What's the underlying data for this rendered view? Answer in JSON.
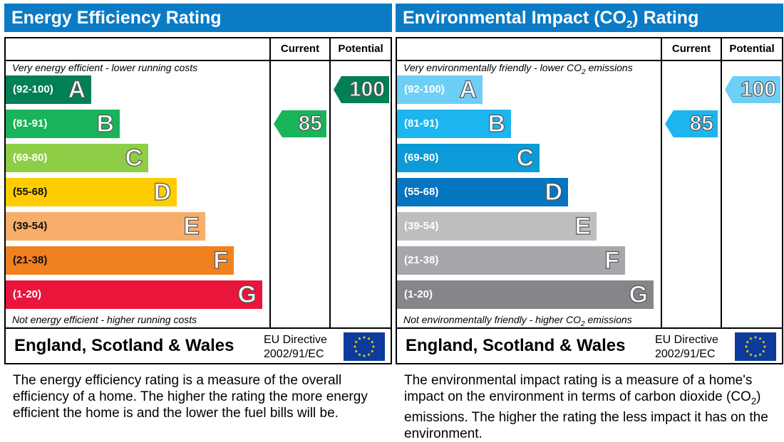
{
  "chart_data": [
    {
      "type": "bar",
      "title": "Energy Efficiency Rating",
      "column_headers": [
        "Current",
        "Potential"
      ],
      "top_note": "Very energy efficient - lower running costs",
      "bottom_note": "Not energy efficient - higher running costs",
      "bands": [
        {
          "letter": "A",
          "range": "(92-100)",
          "color": "#008054"
        },
        {
          "letter": "B",
          "range": "(81-91)",
          "color": "#19b459"
        },
        {
          "letter": "C",
          "range": "(69-80)",
          "color": "#8dce46"
        },
        {
          "letter": "D",
          "range": "(55-68)",
          "color": "#ffcc00"
        },
        {
          "letter": "E",
          "range": "(39-54)",
          "color": "#f7ae6a"
        },
        {
          "letter": "F",
          "range": "(21-38)",
          "color": "#f0811f"
        },
        {
          "letter": "G",
          "range": "(1-20)",
          "color": "#e9153b"
        }
      ],
      "current": {
        "value": 85,
        "label": "85",
        "band": "B",
        "color": "#19b459"
      },
      "potential": {
        "value": 100,
        "label": "100",
        "band": "A",
        "color": "#008054"
      },
      "footer": {
        "country": "England, Scotland & Wales",
        "directive_line1": "EU Directive",
        "directive_line2": "2002/91/EC"
      },
      "description": "The energy efficiency rating is a measure of the overall efficiency of a home. The higher the rating the more energy efficient the home is and the lower the fuel bills will be."
    },
    {
      "type": "bar",
      "title_pre": "Environmental Impact (CO",
      "title_sub": "2",
      "title_post": ") Rating",
      "column_headers": [
        "Current",
        "Potential"
      ],
      "top_note_pre": "Very environmentally friendly - lower CO",
      "top_note_sub": "2",
      "top_note_post": " emissions",
      "bottom_note_pre": "Not environmentally friendly - higher CO",
      "bottom_note_sub": "2",
      "bottom_note_post": " emissions",
      "bands": [
        {
          "letter": "A",
          "range": "(92-100)",
          "color": "#6ecff6"
        },
        {
          "letter": "B",
          "range": "(81-91)",
          "color": "#1db5ef"
        },
        {
          "letter": "C",
          "range": "(69-80)",
          "color": "#0a9bd8"
        },
        {
          "letter": "D",
          "range": "(55-68)",
          "color": "#0575c0"
        },
        {
          "letter": "E",
          "range": "(39-54)",
          "color": "#bcbec0"
        },
        {
          "letter": "F",
          "range": "(21-38)",
          "color": "#a5a7aa"
        },
        {
          "letter": "G",
          "range": "(1-20)",
          "color": "#848689"
        }
      ],
      "current": {
        "value": 85,
        "label": "85",
        "band": "B",
        "color": "#1db5ef"
      },
      "potential": {
        "value": 100,
        "label": "100",
        "band": "A",
        "color": "#6ecff6"
      },
      "footer": {
        "country": "England, Scotland & Wales",
        "directive_line1": "EU Directive",
        "directive_line2": "2002/91/EC"
      },
      "description_pre": "The environmental impact rating is a measure of a home's impact on the environment in terms of carbon dioxide (CO",
      "description_sub": "2",
      "description_post": ") emissions. The higher the rating the less impact it has on the environment."
    }
  ],
  "theme": {
    "title_bar_color": "#0b7bc5",
    "eu_flag_color": "#0c3b9c",
    "eu_star_color": "#ffdd00"
  },
  "icons": {
    "eu_flag": "eu-flag-icon"
  }
}
